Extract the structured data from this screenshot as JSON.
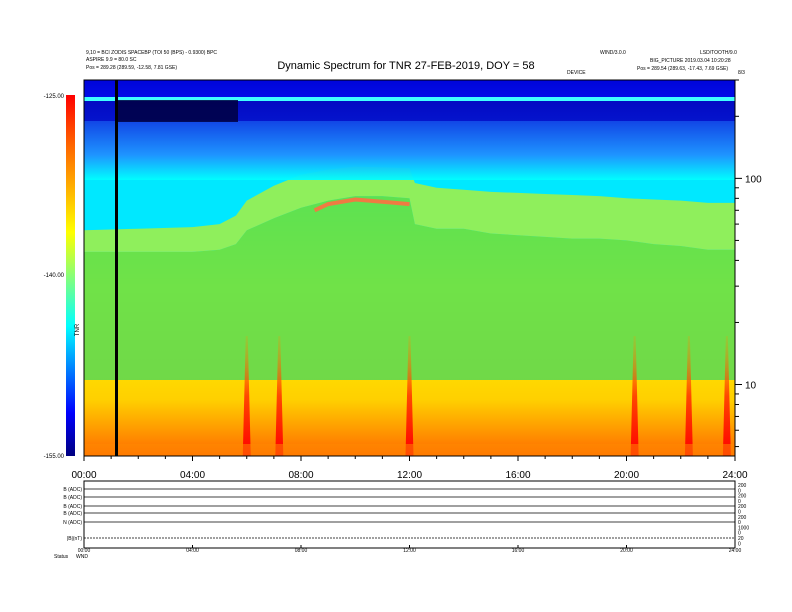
{
  "header": {
    "top_left_line1": "9,10 = BCI ZODIS SPACEBP (TOI 50 (BPS) - 0.9300) BPC",
    "top_left_line2": "ASPIRE 9.9 = 80.0 SC",
    "top_left_line3": "Pos = 289.28 (289.59, -12.58, 7.81 GSE)",
    "top_right_line1": "WIND/3.0.0",
    "top_right_line2": "LSD/TOOTH/9.0",
    "top_right_line3": "BIG_PICTURE 2019.03.04 10:20:28",
    "top_right_line4": "Pos = 289.54 (289.63, -17.43, 7.69 GSE)",
    "small_right_tag": "DEVICE",
    "corner_tag": "8/3"
  },
  "chart_data": {
    "type": "heatmap",
    "title": "Dynamic Spectrum for TNR 27-FEB-2019, DOY = 58",
    "x_tick_labels": [
      "00:00",
      "04:00",
      "08:00",
      "12:00",
      "16:00",
      "20:00",
      "24:00"
    ],
    "x_ticks_hours": [
      0,
      4,
      8,
      12,
      16,
      20,
      24
    ],
    "xlim_hours": [
      0,
      24
    ],
    "y_scale": "log",
    "ylim": [
      4.5,
      300
    ],
    "y_tick_values": [
      10,
      100
    ],
    "y_tick_labels": [
      "10",
      "100"
    ],
    "colorbar": {
      "range": [
        -155,
        -125
      ],
      "tick_labels": [
        "-125.00",
        "-140.00",
        "-155.00"
      ],
      "tick_values": [
        -125,
        -140,
        -155
      ],
      "label": "TNR"
    },
    "boundary_lower_hz": [
      [
        0,
        44
      ],
      [
        2,
        44
      ],
      [
        4,
        44
      ],
      [
        5,
        45
      ],
      [
        5.6,
        48
      ],
      [
        6,
        56
      ],
      [
        7,
        64
      ],
      [
        8,
        72
      ],
      [
        9,
        78
      ],
      [
        10,
        82
      ],
      [
        11,
        82
      ],
      [
        12,
        80
      ],
      [
        12.2,
        60
      ],
      [
        13,
        57
      ],
      [
        14,
        57
      ],
      [
        15,
        54
      ],
      [
        16,
        53
      ],
      [
        17,
        52
      ],
      [
        18,
        51
      ],
      [
        19,
        51
      ],
      [
        20,
        50
      ],
      [
        21,
        48
      ],
      [
        22,
        47
      ],
      [
        23,
        45
      ],
      [
        24,
        45
      ]
    ],
    "boundary_upper_hz": [
      [
        0,
        56
      ],
      [
        2,
        57
      ],
      [
        4,
        58
      ],
      [
        5,
        60
      ],
      [
        5.6,
        66
      ],
      [
        6,
        78
      ],
      [
        7,
        92
      ],
      [
        8,
        104
      ],
      [
        9,
        110
      ],
      [
        10,
        114
      ],
      [
        11,
        113
      ],
      [
        12,
        112
      ],
      [
        12.2,
        95
      ],
      [
        13,
        90
      ],
      [
        14,
        88
      ],
      [
        15,
        86
      ],
      [
        16,
        85
      ],
      [
        17,
        84
      ],
      [
        18,
        83
      ],
      [
        19,
        82
      ],
      [
        20,
        80
      ],
      [
        21,
        79
      ],
      [
        22,
        78
      ],
      [
        23,
        76
      ],
      [
        24,
        76
      ]
    ],
    "emission_band_hz": [
      [
        8.5,
        70
      ],
      [
        9,
        75
      ],
      [
        10,
        79
      ],
      [
        11,
        77
      ],
      [
        12,
        75
      ]
    ],
    "bursts_hours": [
      6.0,
      7.2,
      12.0,
      20.3,
      22.3,
      23.7
    ],
    "data_gap_hour": 1.2
  },
  "lower_panel": {
    "row_labels": [
      "B (ADC)",
      "B (ADC)",
      "B (ADC)",
      "B (ADC)",
      "N (ADC)",
      "|B|(nT)"
    ],
    "right_labels": [
      "200",
      "0",
      "200",
      "0",
      "200",
      "0",
      "200",
      "0",
      "1000",
      "0",
      "20",
      "0"
    ],
    "x_tick_labels": [
      "00:00",
      "04:00",
      "08:00",
      "12:00",
      "16:00",
      "20:00",
      "24:00"
    ],
    "footer_left": "Status",
    "footer_code": "WND"
  }
}
